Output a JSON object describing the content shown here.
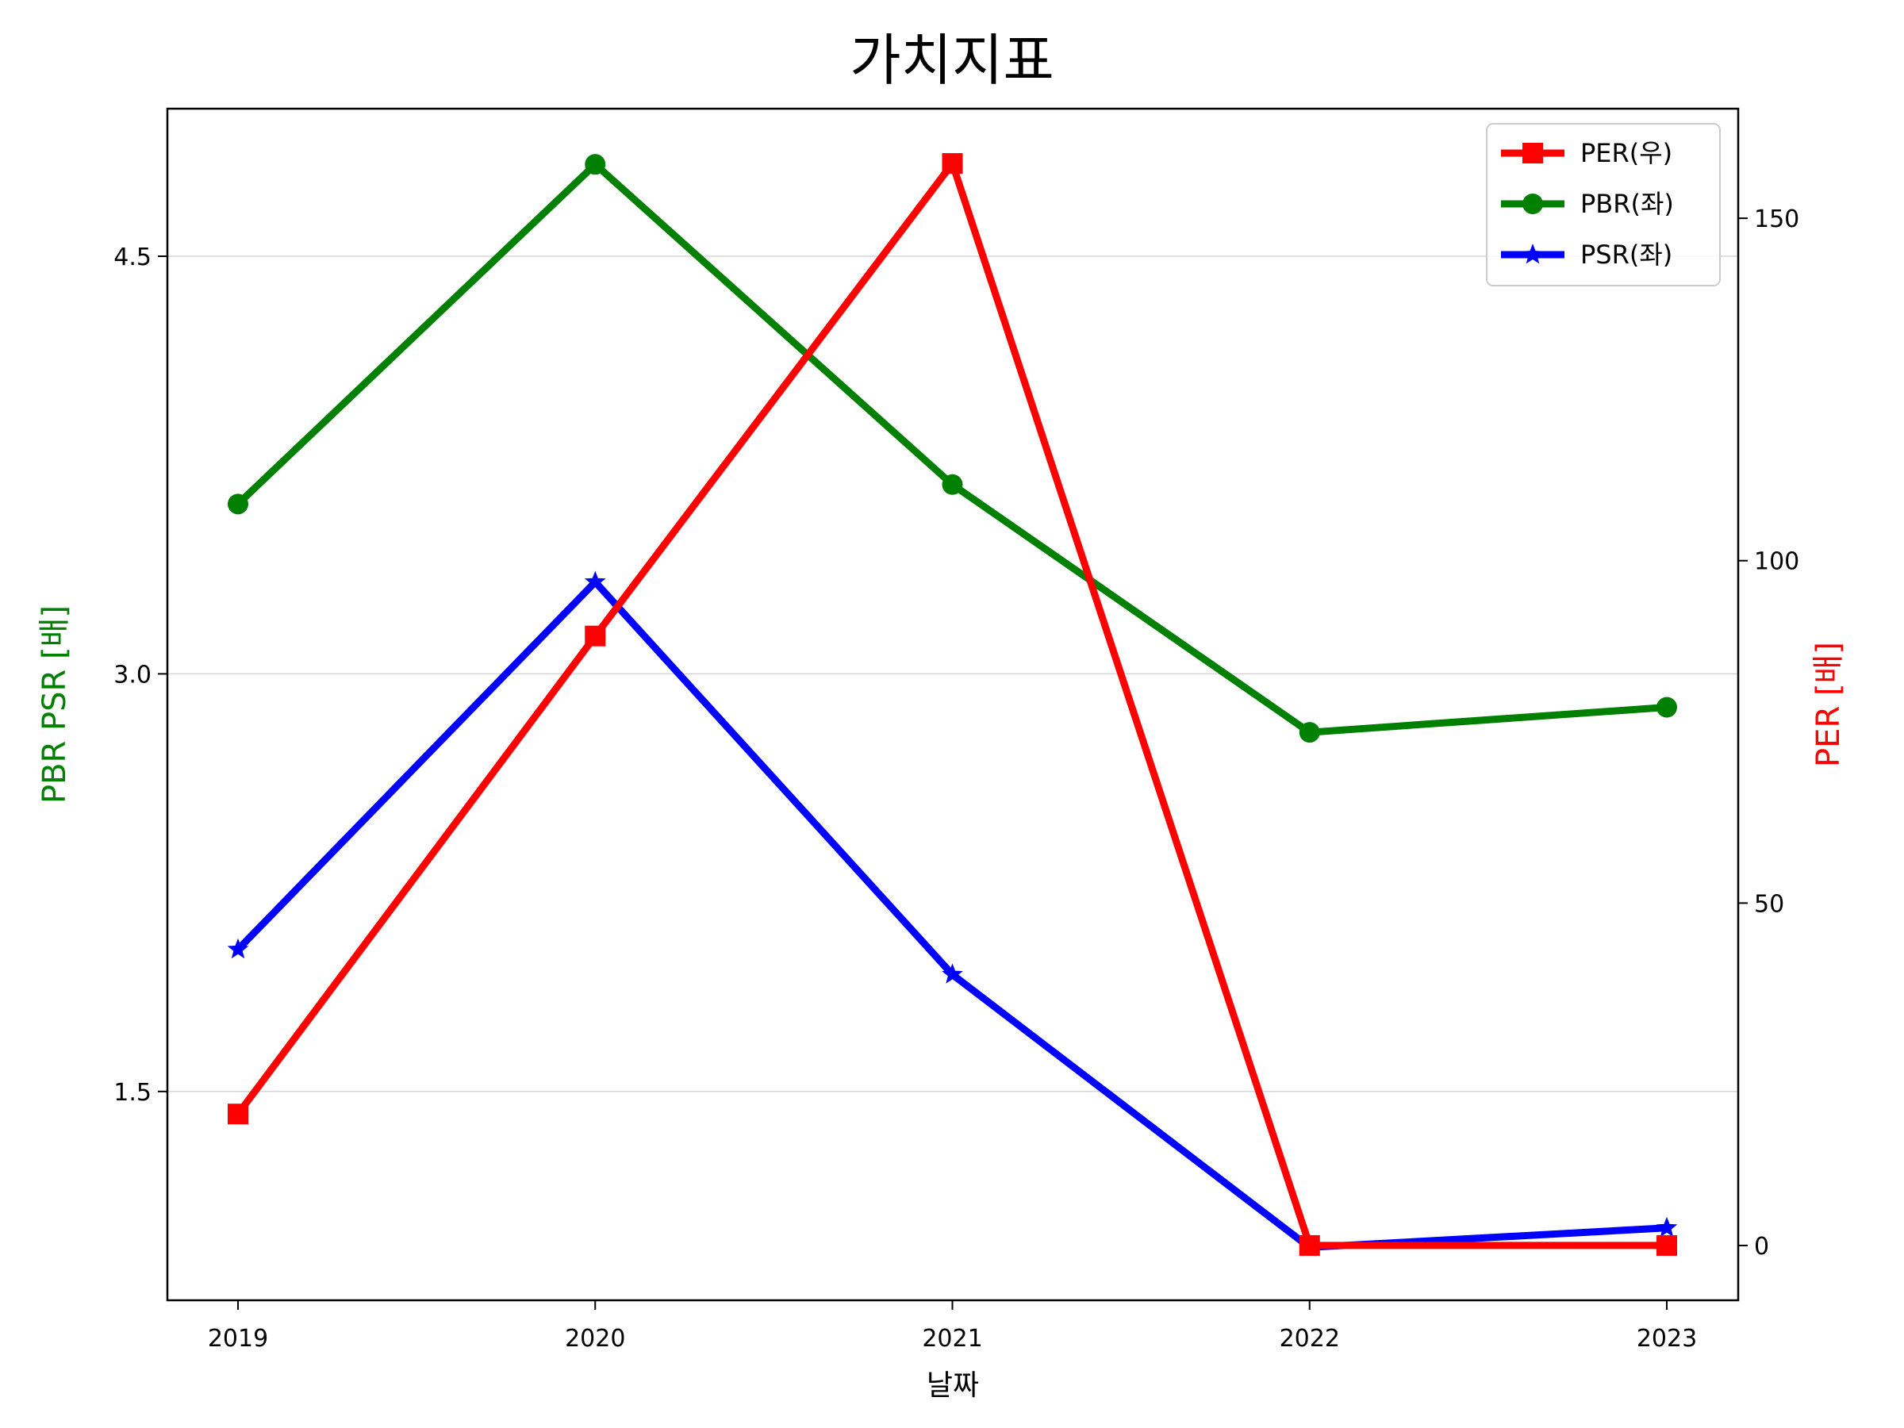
{
  "chart_data": {
    "type": "line",
    "title": "가치지표",
    "xlabel": "날짜",
    "ylabel_left": "PBR PSR [배]",
    "ylabel_right": "PER [배]",
    "ylabel_left_color": "#008000",
    "ylabel_right_color": "#ff0000",
    "categories": [
      "2019",
      "2020",
      "2021",
      "2022",
      "2023"
    ],
    "left_axis": {
      "ylim": [
        0.75,
        5.03
      ],
      "ticks": [
        1.5,
        3.0,
        4.5
      ],
      "tick_labels": [
        "1.5",
        "3.0",
        "4.5"
      ]
    },
    "right_axis": {
      "ylim": [
        -8,
        166
      ],
      "ticks": [
        0,
        50,
        100,
        150
      ],
      "tick_labels": [
        "0",
        "50",
        "100",
        "150"
      ]
    },
    "grid": "horizontal (left axis)",
    "legend_position": "top-right",
    "series": [
      {
        "name": "PER(우)",
        "axis": "right",
        "color": "#ff0000",
        "marker": "square",
        "values": [
          19.2,
          89.0,
          158.0,
          0.0,
          0.0
        ]
      },
      {
        "name": "PBR(좌)",
        "axis": "left",
        "color": "#008000",
        "marker": "circle",
        "values": [
          3.61,
          4.83,
          3.68,
          2.79,
          2.88
        ]
      },
      {
        "name": "PSR(좌)",
        "axis": "left",
        "color": "#0000ff",
        "marker": "star",
        "values": [
          2.01,
          3.33,
          1.92,
          0.94,
          1.01
        ]
      }
    ]
  }
}
